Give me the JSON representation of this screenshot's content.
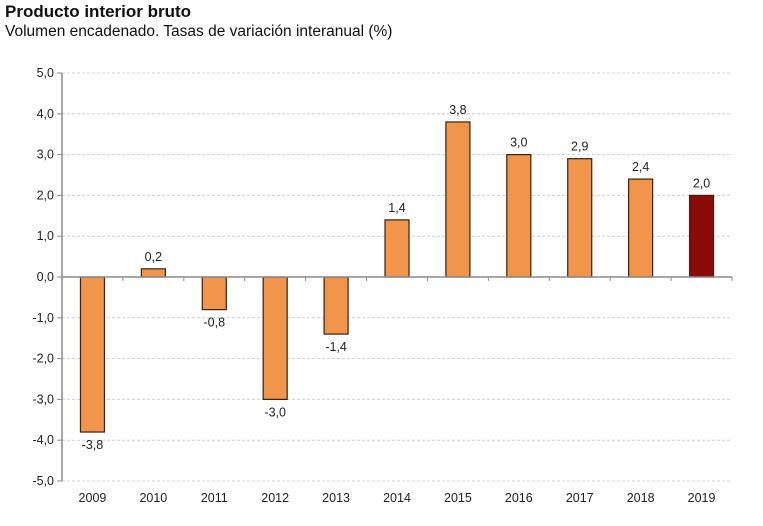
{
  "chart_data": {
    "type": "bar",
    "title": "Producto interior bruto",
    "subtitle": "Volumen encadenado. Tasas de variación interanual (%)",
    "xlabel": "",
    "ylabel": "",
    "categories": [
      "2009",
      "2010",
      "2011",
      "2012",
      "2013",
      "2014",
      "2015",
      "2016",
      "2017",
      "2018",
      "2019"
    ],
    "values": [
      -3.8,
      0.2,
      -0.8,
      -3.0,
      -1.4,
      1.4,
      3.8,
      3.0,
      2.9,
      2.4,
      2.0
    ],
    "value_labels": [
      "-3,8",
      "0,2",
      "-0,8",
      "-3,0",
      "-1,4",
      "1,4",
      "3,8",
      "3,0",
      "2,9",
      "2,4",
      "2,0"
    ],
    "ylim": [
      -5,
      5
    ],
    "yticks": [
      5,
      4,
      3,
      2,
      1,
      0,
      -1,
      -2,
      -3,
      -4,
      -5
    ],
    "ytick_labels": [
      "5,0",
      "4,0",
      "3,0",
      "2,0",
      "1,0",
      "0,0",
      "-1,0",
      "-2,0",
      "-3,0",
      "-4,0",
      "-5,0"
    ],
    "grid": true,
    "legend": "none",
    "colors": {
      "default_bar": "#F0954A",
      "highlight_bar": "#8B0A0A",
      "bar_outline": "#3a2010",
      "axis": "#8c8c8c",
      "grid": "#d0d0d0"
    },
    "highlight_category": "2019"
  }
}
